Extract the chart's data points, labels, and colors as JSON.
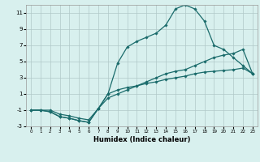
{
  "title": "",
  "xlabel": "Humidex (Indice chaleur)",
  "background_color": "#d8f0ee",
  "grid_color": "#b0c8c8",
  "line_color": "#1a6b6b",
  "xlim": [
    -0.5,
    23.5
  ],
  "ylim": [
    -3,
    12
  ],
  "xticks": [
    0,
    1,
    2,
    3,
    4,
    5,
    6,
    7,
    8,
    9,
    10,
    11,
    12,
    13,
    14,
    15,
    16,
    17,
    18,
    19,
    20,
    21,
    22,
    23
  ],
  "yticks": [
    -3,
    -1,
    1,
    3,
    5,
    7,
    9,
    11
  ],
  "curve1_x": [
    0,
    1,
    2,
    3,
    4,
    5,
    6,
    7,
    8,
    9,
    10,
    11,
    12,
    13,
    14,
    15,
    16,
    17,
    18,
    19,
    20,
    21,
    22,
    23
  ],
  "curve1_y": [
    -1,
    -1,
    -1.2,
    -1.8,
    -2.0,
    -2.3,
    -2.5,
    -0.8,
    1.0,
    1.5,
    1.8,
    2.0,
    2.3,
    2.5,
    2.8,
    3.0,
    3.2,
    3.5,
    3.7,
    3.8,
    3.9,
    4.0,
    4.2,
    3.5
  ],
  "curve2_x": [
    0,
    1,
    2,
    3,
    4,
    5,
    6,
    7,
    8,
    9,
    10,
    11,
    12,
    13,
    14,
    15,
    16,
    17,
    18,
    19,
    20,
    21,
    22,
    23
  ],
  "curve2_y": [
    -1,
    -1,
    -1.0,
    -1.5,
    -1.7,
    -2.0,
    -2.2,
    -0.8,
    0.5,
    1.0,
    1.5,
    2.0,
    2.5,
    3.0,
    3.5,
    3.8,
    4.0,
    4.5,
    5.0,
    5.5,
    5.8,
    6.0,
    6.5,
    3.5
  ],
  "curve3_x": [
    0,
    1,
    2,
    3,
    4,
    5,
    6,
    7,
    8,
    9,
    10,
    11,
    12,
    13,
    14,
    15,
    16,
    17,
    18,
    19,
    20,
    21,
    22,
    23
  ],
  "curve3_y": [
    -1,
    -1,
    -1.2,
    -1.8,
    -2.0,
    -2.3,
    -2.5,
    -0.8,
    1.0,
    4.8,
    6.8,
    7.5,
    8.0,
    8.5,
    9.5,
    11.5,
    12.0,
    11.5,
    10.0,
    7.0,
    6.5,
    5.5,
    4.5,
    3.5
  ],
  "markersize": 1.8,
  "linewidth": 0.9,
  "xlabel_fontsize": 6,
  "tick_fontsize_x": 4,
  "tick_fontsize_y": 5
}
